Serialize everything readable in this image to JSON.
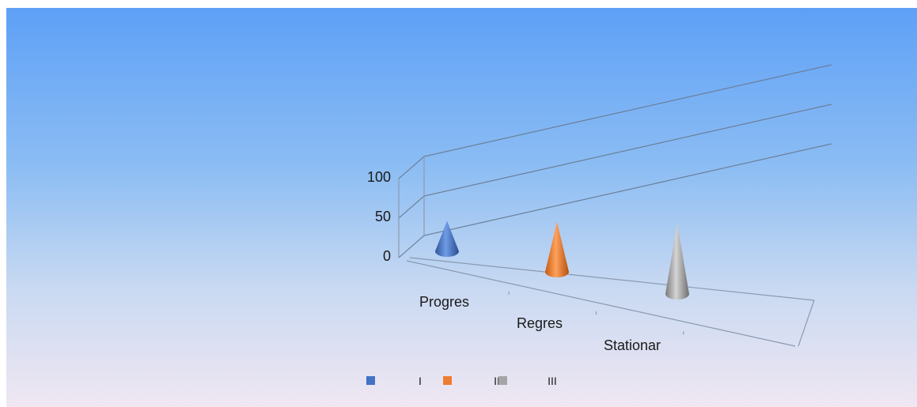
{
  "chart_data": {
    "type": "bar",
    "shape": "cone",
    "view": "3d",
    "categories": [
      "Progres",
      "Regres",
      "Stationar"
    ],
    "series": [
      {
        "name": "I",
        "values": [
          15,
          null,
          null
        ],
        "color": "#4472c4"
      },
      {
        "name": "II",
        "values": [
          null,
          28,
          null
        ],
        "color": "#ed7d31"
      },
      {
        "name": "III",
        "values": [
          null,
          null,
          42
        ],
        "color": "#a5a5a5"
      }
    ],
    "yticks": [
      0,
      50,
      100
    ],
    "ylim": [
      0,
      100
    ],
    "grid": true,
    "legend_position": "bottom",
    "title": "",
    "xlabel": "",
    "ylabel": ""
  }
}
